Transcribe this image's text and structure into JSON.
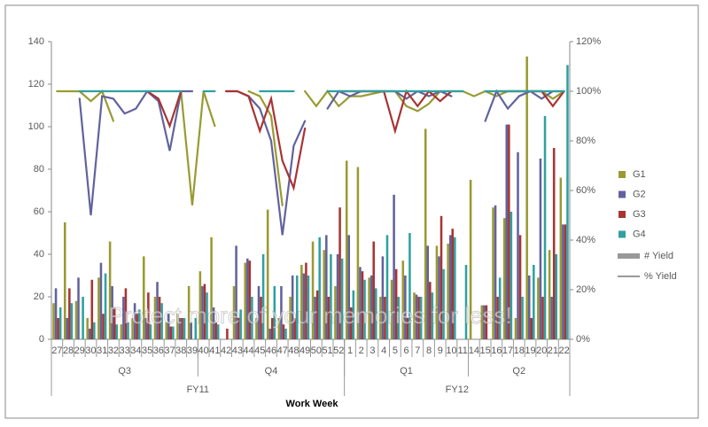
{
  "chart_data": {
    "type": "bar-line",
    "categories": [
      "27",
      "28",
      "29",
      "30",
      "31",
      "32",
      "33",
      "34",
      "35",
      "36",
      "37",
      "38",
      "39",
      "40",
      "41",
      "42",
      "43",
      "44",
      "45",
      "46",
      "47",
      "48",
      "49",
      "50",
      "51",
      "52",
      "1",
      "2",
      "3",
      "4",
      "5",
      "6",
      "7",
      "8",
      "9",
      "10",
      "11",
      "14",
      "15",
      "16",
      "17",
      "18",
      "19",
      "20",
      "21",
      "22"
    ],
    "quarters": [
      {
        "label": "Q3",
        "count": 13
      },
      {
        "label": "Q4",
        "count": 13
      },
      {
        "label": "Q1",
        "count": 11
      },
      {
        "label": "Q2",
        "count": 9
      }
    ],
    "years": [
      {
        "label": "FY11",
        "count": 26
      },
      {
        "label": "FY12",
        "count": 20
      }
    ],
    "x_label": "Work Week",
    "ylim": [
      0,
      140
    ],
    "yticks": [
      0,
      20,
      40,
      60,
      80,
      100,
      120,
      140
    ],
    "y2lim": [
      0,
      120
    ],
    "y2ticks": [
      {
        "value": 0,
        "label": "0%"
      },
      {
        "value": 20,
        "label": "20%"
      },
      {
        "value": 40,
        "label": "40%"
      },
      {
        "value": 60,
        "label": "60%"
      },
      {
        "value": 80,
        "label": "80%"
      },
      {
        "value": 100,
        "label": "100%"
      },
      {
        "value": 120,
        "label": "120%"
      }
    ],
    "bar_label": "# Yield",
    "line_label": "% Yield",
    "series": [
      {
        "name": "G1",
        "color": "#9a9a33",
        "values": [
          17,
          55,
          18,
          10,
          29,
          46,
          7,
          10,
          39,
          20,
          8,
          12,
          25,
          32,
          48,
          null,
          25,
          36,
          10,
          61,
          10,
          20,
          35,
          46,
          42,
          25,
          84,
          81,
          29,
          20,
          28,
          37,
          22,
          99,
          44,
          45,
          null,
          75,
          16,
          62,
          57,
          10,
          133,
          29,
          42,
          76
        ],
        "pct_values": [
          100,
          100,
          100,
          96,
          100,
          88,
          null,
          null,
          null,
          null,
          null,
          100,
          54,
          100,
          86,
          null,
          null,
          100,
          98,
          90,
          54,
          null,
          100,
          94,
          100,
          94,
          98,
          98,
          99,
          100,
          100,
          94,
          92,
          95,
          100,
          100,
          100,
          98,
          100,
          98,
          100,
          100,
          100,
          100,
          97,
          100
        ]
      },
      {
        "name": "G2",
        "color": "#62629e",
        "values": [
          24,
          10,
          29,
          5,
          36,
          25,
          20,
          17,
          10,
          27,
          12,
          10,
          8,
          25,
          15,
          null,
          44,
          38,
          25,
          5,
          25,
          30,
          31,
          20,
          49,
          40,
          49,
          34,
          30,
          39,
          68,
          30,
          21,
          44,
          39,
          49,
          null,
          null,
          16,
          63,
          101,
          88,
          30,
          85,
          20,
          54
        ],
        "pct_values": [
          null,
          null,
          97,
          50,
          98,
          97,
          91,
          93,
          100,
          96,
          76,
          100,
          100,
          null,
          null,
          100,
          100,
          98,
          93,
          80,
          42,
          78,
          88,
          null,
          93,
          100,
          98,
          100,
          100,
          100,
          100,
          97,
          100,
          98,
          100,
          98,
          null,
          null,
          88,
          100,
          93,
          98,
          100,
          97,
          100,
          100
        ]
      },
      {
        "name": "G3",
        "color": "#a83434",
        "values": [
          10,
          24,
          null,
          28,
          12,
          15,
          24,
          12,
          22,
          20,
          6,
          10,
          null,
          26,
          8,
          5,
          10,
          37,
          20,
          10,
          7,
          10,
          36,
          23,
          20,
          62,
          15,
          32,
          46,
          20,
          33,
          10,
          20,
          27,
          58,
          52,
          null,
          null,
          16,
          20,
          101,
          49,
          10,
          20,
          90,
          54
        ],
        "pct_values": [
          null,
          null,
          null,
          null,
          null,
          null,
          null,
          null,
          100,
          97,
          86,
          100,
          null,
          null,
          null,
          100,
          100,
          98,
          84,
          97,
          72,
          61,
          85,
          null,
          null,
          100,
          100,
          100,
          100,
          100,
          84,
          100,
          94,
          100,
          96,
          100,
          null,
          null,
          null,
          100,
          100,
          100,
          100,
          100,
          94,
          100
        ]
      },
      {
        "name": "G4",
        "color": "#30a0a0",
        "values": [
          15,
          17,
          20,
          8,
          31,
          7,
          8,
          14,
          7,
          17,
          6,
          10,
          10,
          22,
          7,
          null,
          14,
          20,
          40,
          25,
          5,
          30,
          30,
          48,
          40,
          38,
          23,
          28,
          24,
          49,
          20,
          50,
          20,
          22,
          33,
          48,
          35,
          null,
          null,
          29,
          60,
          20,
          35,
          105,
          40,
          129
        ],
        "pct_values": [
          null,
          null,
          100,
          100,
          100,
          100,
          100,
          100,
          100,
          100,
          100,
          100,
          null,
          100,
          100,
          null,
          null,
          null,
          100,
          100,
          100,
          100,
          null,
          null,
          100,
          100,
          100,
          100,
          100,
          100,
          100,
          100,
          100,
          100,
          100,
          100,
          100,
          null,
          100,
          100,
          100,
          100,
          100,
          100,
          100,
          100
        ]
      }
    ],
    "watermark": "Protect more of your memories for less!"
  }
}
